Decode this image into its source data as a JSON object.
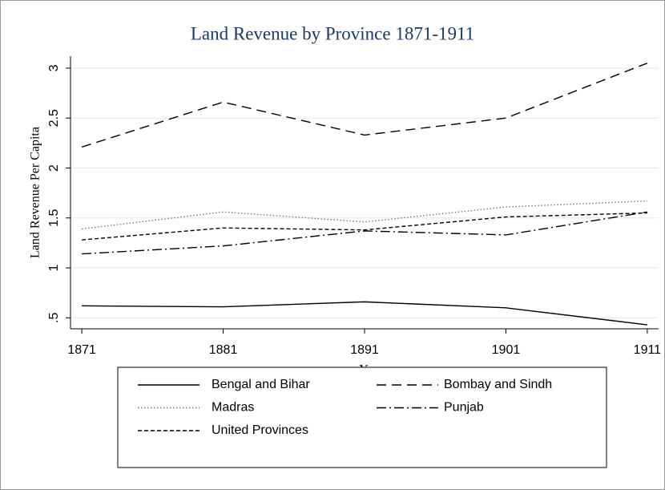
{
  "chart_data": {
    "type": "line",
    "title": "Land Revenue by Province 1871-1911",
    "xlabel": "Year",
    "ylabel": "Land Revenue Per Capita",
    "x": [
      1871,
      1881,
      1891,
      1901,
      1911
    ],
    "xlim": [
      1870.2,
      1911.8
    ],
    "xticks": [
      1871,
      1881,
      1891,
      1901,
      1911
    ],
    "ylim": [
      0.39,
      3.12
    ],
    "yticks": [
      {
        "value": 0.5,
        "label": ".5"
      },
      1,
      1.5,
      2,
      2.5,
      3
    ],
    "grid": true,
    "legend": "bottom",
    "series": [
      {
        "name": "Bengal and Bihar",
        "color": "#000000",
        "dash": "solid",
        "values": [
          0.62,
          0.61,
          0.66,
          0.6,
          0.43
        ]
      },
      {
        "name": "Bombay and Sindh",
        "color": "#000000",
        "dash": "longdash",
        "values": [
          2.21,
          2.66,
          2.33,
          2.5,
          3.05
        ]
      },
      {
        "name": "Madras",
        "color": "#777777",
        "dash": "dot",
        "values": [
          1.39,
          1.56,
          1.46,
          1.61,
          1.67
        ]
      },
      {
        "name": "Punjab",
        "color": "#000000",
        "dash": "dashdot",
        "values": [
          1.14,
          1.22,
          1.37,
          1.33,
          1.56
        ]
      },
      {
        "name": "United Provinces",
        "color": "#000000",
        "dash": "shortdash",
        "values": [
          1.28,
          1.4,
          1.38,
          1.51,
          1.55
        ]
      }
    ]
  }
}
